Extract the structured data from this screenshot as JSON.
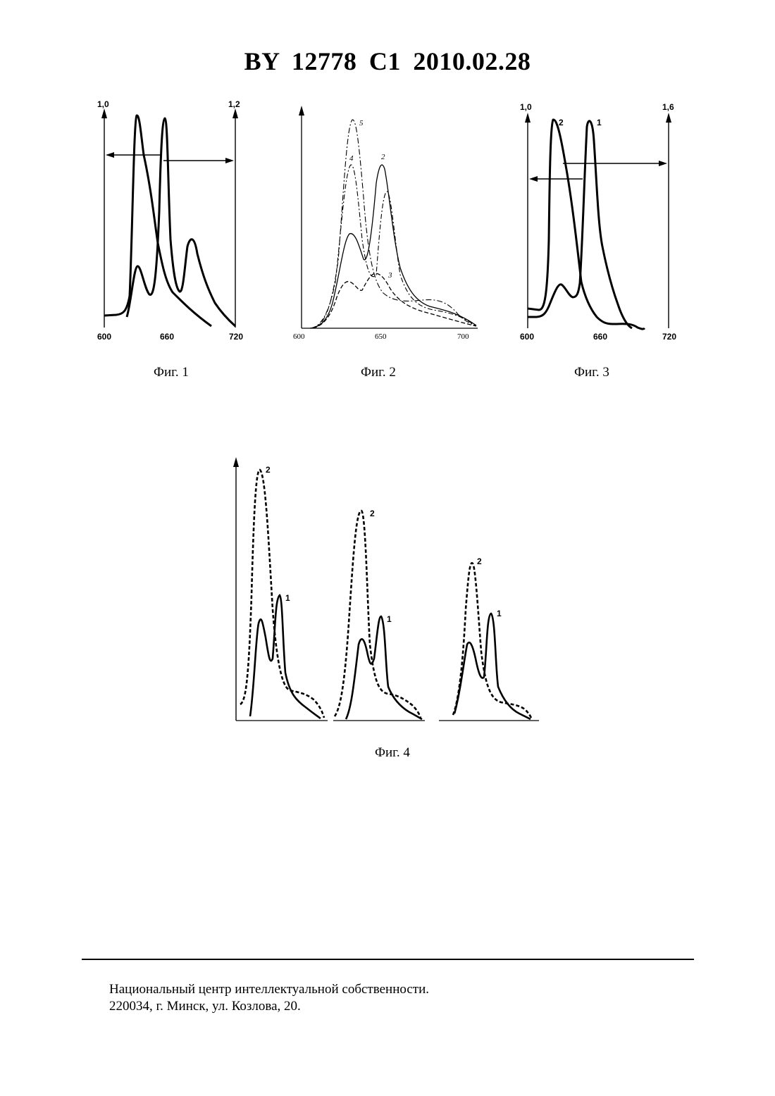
{
  "header": {
    "title": "BY  12778  C1  2010.02.28"
  },
  "figures": {
    "fig1": {
      "caption": "Фиг. 1",
      "y_left": "1,0",
      "y_right": "1,2",
      "x_ticks": [
        "600",
        "660",
        "720"
      ]
    },
    "fig2": {
      "caption": "Фиг. 2",
      "x_ticks": [
        "600",
        "650",
        "700"
      ],
      "curve_labels": [
        "2",
        "3",
        "4",
        "5"
      ]
    },
    "fig3": {
      "caption": "Фиг. 3",
      "y_left": "1,0",
      "y_right": "1,6",
      "x_ticks": [
        "600",
        "660",
        "720"
      ],
      "curve_labels": [
        "1",
        "2"
      ]
    },
    "fig4": {
      "caption": "Фиг. 4",
      "curve_labels": [
        "1",
        "2"
      ]
    }
  },
  "chart_data": [
    {
      "type": "line",
      "x": [
        600,
        610,
        620,
        625,
        630,
        635,
        640,
        645,
        650,
        655,
        660,
        665,
        670,
        675,
        680,
        690,
        700,
        710,
        720
      ],
      "series": [
        {
          "values": [
            0.0,
            0.0,
            0.05,
            0.45,
            0.92,
            0.85,
            0.75,
            0.55,
            0.38,
            0.25,
            0.18,
            0.16,
            0.25,
            0.35,
            0.3,
            0.18,
            0.1,
            0.04,
            0.0
          ]
        },
        {
          "values": [
            0.0,
            0.0,
            0.02,
            0.2,
            0.3,
            0.2,
            0.14,
            0.3,
            0.7,
            1.05,
            0.35,
            0.15,
            0.3,
            0.38,
            0.32,
            0.16,
            0.05,
            0.01,
            0.0
          ]
        }
      ],
      "xlim": [
        600,
        720
      ]
    },
    {
      "type": "line",
      "x": [
        600,
        610,
        620,
        625,
        630,
        635,
        640,
        645,
        650,
        655,
        660,
        670,
        680,
        690,
        700,
        705
      ],
      "series": [
        {
          "name": "2",
          "values": [
            0.0,
            0.02,
            0.25,
            0.6,
            0.7,
            0.55,
            0.5,
            0.65,
            0.95,
            0.6,
            0.35,
            0.18,
            0.12,
            0.09,
            0.05,
            0.03
          ]
        },
        {
          "name": "3",
          "values": [
            0.0,
            0.01,
            0.12,
            0.25,
            0.3,
            0.25,
            0.22,
            0.28,
            0.28,
            0.24,
            0.2,
            0.14,
            0.1,
            0.08,
            0.04,
            0.02
          ]
        },
        {
          "name": "4",
          "values": [
            0.0,
            0.02,
            0.35,
            0.8,
            1.05,
            0.85,
            0.55,
            0.45,
            0.4,
            0.3,
            0.22,
            0.15,
            0.12,
            0.1,
            0.05,
            0.03
          ]
        },
        {
          "name": "5",
          "values": [
            0.0,
            0.02,
            0.4,
            1.0,
            1.35,
            1.05,
            0.6,
            0.4,
            0.32,
            0.26,
            0.2,
            0.16,
            0.16,
            0.12,
            0.06,
            0.03
          ]
        }
      ],
      "xlim": [
        600,
        705
      ]
    },
    {
      "type": "line",
      "x": [
        600,
        610,
        620,
        625,
        630,
        635,
        640,
        645,
        650,
        655,
        660,
        665,
        670,
        680,
        690,
        700,
        710
      ],
      "series": [
        {
          "name": "1",
          "values": [
            0.03,
            0.05,
            0.3,
            0.4,
            0.3,
            0.25,
            0.4,
            0.95,
            1.2,
            0.95,
            0.6,
            0.35,
            0.15,
            0.03,
            0.0,
            0.0,
            0.0
          ]
        },
        {
          "name": "2",
          "values": [
            0.1,
            0.12,
            1.2,
            1.15,
            1.0,
            0.85,
            0.7,
            0.55,
            0.42,
            0.32,
            0.25,
            0.18,
            0.12,
            0.05,
            0.02,
            0.0,
            0.0
          ]
        }
      ],
      "xlim": [
        600,
        720
      ]
    }
  ],
  "footer": {
    "line1": "Национальный центр интеллектуальной собственности.",
    "line2": "220034, г. Минск, ул. Козлова, 20."
  }
}
